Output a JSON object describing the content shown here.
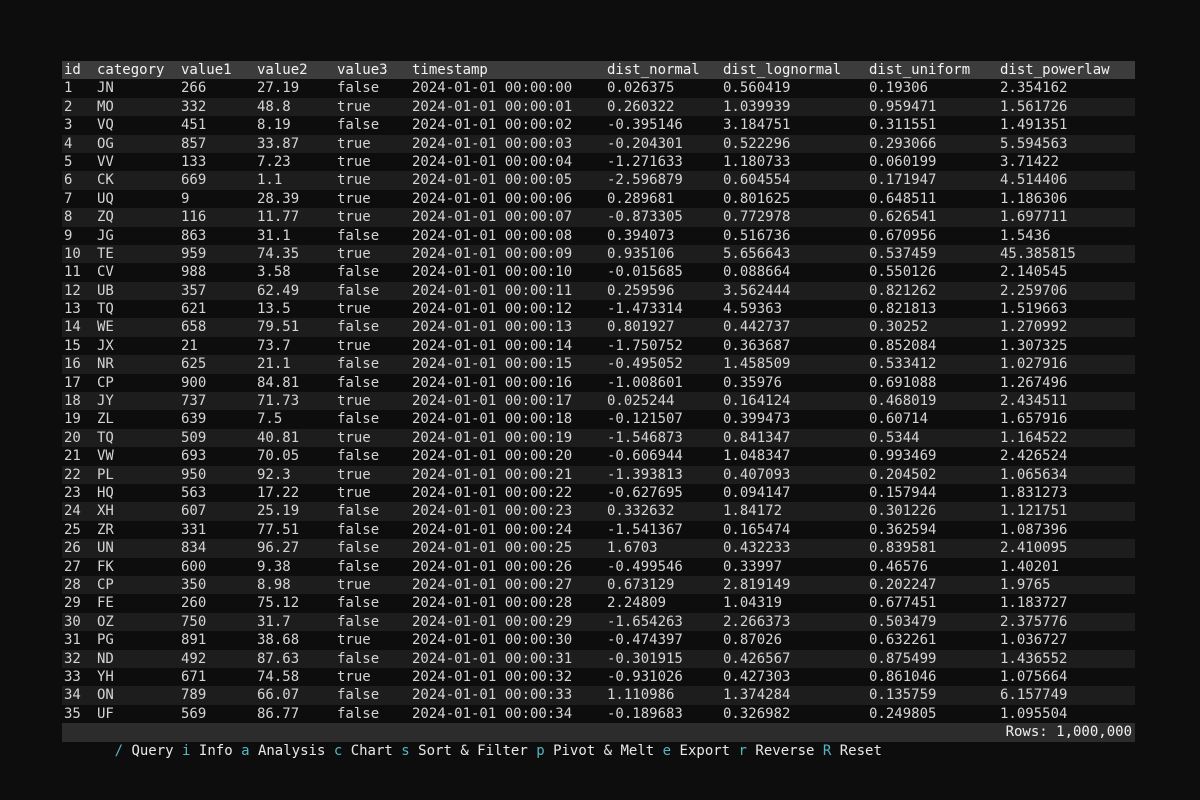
{
  "colors": {
    "background": "#0d0d0d",
    "header_bg": "#3c3c3c",
    "row_alt_bg": "#1d1d1d",
    "statusbar_bg": "#2c2c2c",
    "text": "#d4d4d4",
    "accent_key": "#56b6c2"
  },
  "table": {
    "columns": [
      "id",
      "category",
      "value1",
      "value2",
      "value3",
      "timestamp",
      "dist_normal",
      "dist_lognormal",
      "dist_uniform",
      "dist_powerlaw"
    ],
    "rows": [
      [
        "1",
        "JN",
        "266",
        "27.19",
        "false",
        "2024-01-01 00:00:00",
        "0.026375",
        "0.560419",
        "0.19306",
        "2.354162"
      ],
      [
        "2",
        "MO",
        "332",
        "48.8",
        "true",
        "2024-01-01 00:00:01",
        "0.260322",
        "1.039939",
        "0.959471",
        "1.561726"
      ],
      [
        "3",
        "VQ",
        "451",
        "8.19",
        "false",
        "2024-01-01 00:00:02",
        "-0.395146",
        "3.184751",
        "0.311551",
        "1.491351"
      ],
      [
        "4",
        "OG",
        "857",
        "33.87",
        "true",
        "2024-01-01 00:00:03",
        "-0.204301",
        "0.522296",
        "0.293066",
        "5.594563"
      ],
      [
        "5",
        "VV",
        "133",
        "7.23",
        "true",
        "2024-01-01 00:00:04",
        "-1.271633",
        "1.180733",
        "0.060199",
        "3.71422"
      ],
      [
        "6",
        "CK",
        "669",
        "1.1",
        "true",
        "2024-01-01 00:00:05",
        "-2.596879",
        "0.604554",
        "0.171947",
        "4.514406"
      ],
      [
        "7",
        "UQ",
        "9",
        "28.39",
        "true",
        "2024-01-01 00:00:06",
        "0.289681",
        "0.801625",
        "0.648511",
        "1.186306"
      ],
      [
        "8",
        "ZQ",
        "116",
        "11.77",
        "true",
        "2024-01-01 00:00:07",
        "-0.873305",
        "0.772978",
        "0.626541",
        "1.697711"
      ],
      [
        "9",
        "JG",
        "863",
        "31.1",
        "false",
        "2024-01-01 00:00:08",
        "0.394073",
        "0.516736",
        "0.670956",
        "1.5436"
      ],
      [
        "10",
        "TE",
        "959",
        "74.35",
        "true",
        "2024-01-01 00:00:09",
        "0.935106",
        "5.656643",
        "0.537459",
        "45.385815"
      ],
      [
        "11",
        "CV",
        "988",
        "3.58",
        "false",
        "2024-01-01 00:00:10",
        "-0.015685",
        "0.088664",
        "0.550126",
        "2.140545"
      ],
      [
        "12",
        "UB",
        "357",
        "62.49",
        "false",
        "2024-01-01 00:00:11",
        "0.259596",
        "3.562444",
        "0.821262",
        "2.259706"
      ],
      [
        "13",
        "TQ",
        "621",
        "13.5",
        "true",
        "2024-01-01 00:00:12",
        "-1.473314",
        "4.59363",
        "0.821813",
        "1.519663"
      ],
      [
        "14",
        "WE",
        "658",
        "79.51",
        "false",
        "2024-01-01 00:00:13",
        "0.801927",
        "0.442737",
        "0.30252",
        "1.270992"
      ],
      [
        "15",
        "JX",
        "21",
        "73.7",
        "true",
        "2024-01-01 00:00:14",
        "-1.750752",
        "0.363687",
        "0.852084",
        "1.307325"
      ],
      [
        "16",
        "NR",
        "625",
        "21.1",
        "false",
        "2024-01-01 00:00:15",
        "-0.495052",
        "1.458509",
        "0.533412",
        "1.027916"
      ],
      [
        "17",
        "CP",
        "900",
        "84.81",
        "false",
        "2024-01-01 00:00:16",
        "-1.008601",
        "0.35976",
        "0.691088",
        "1.267496"
      ],
      [
        "18",
        "JY",
        "737",
        "71.73",
        "true",
        "2024-01-01 00:00:17",
        "0.025244",
        "0.164124",
        "0.468019",
        "2.434511"
      ],
      [
        "19",
        "ZL",
        "639",
        "7.5",
        "false",
        "2024-01-01 00:00:18",
        "-0.121507",
        "0.399473",
        "0.60714",
        "1.657916"
      ],
      [
        "20",
        "TQ",
        "509",
        "40.81",
        "true",
        "2024-01-01 00:00:19",
        "-1.546873",
        "0.841347",
        "0.5344",
        "1.164522"
      ],
      [
        "21",
        "VW",
        "693",
        "70.05",
        "false",
        "2024-01-01 00:00:20",
        "-0.606944",
        "1.048347",
        "0.993469",
        "2.426524"
      ],
      [
        "22",
        "PL",
        "950",
        "92.3",
        "true",
        "2024-01-01 00:00:21",
        "-1.393813",
        "0.407093",
        "0.204502",
        "1.065634"
      ],
      [
        "23",
        "HQ",
        "563",
        "17.22",
        "true",
        "2024-01-01 00:00:22",
        "-0.627695",
        "0.094147",
        "0.157944",
        "1.831273"
      ],
      [
        "24",
        "XH",
        "607",
        "25.19",
        "false",
        "2024-01-01 00:00:23",
        "0.332632",
        "1.84172",
        "0.301226",
        "1.121751"
      ],
      [
        "25",
        "ZR",
        "331",
        "77.51",
        "false",
        "2024-01-01 00:00:24",
        "-1.541367",
        "0.165474",
        "0.362594",
        "1.087396"
      ],
      [
        "26",
        "UN",
        "834",
        "96.27",
        "false",
        "2024-01-01 00:00:25",
        "1.6703",
        "0.432233",
        "0.839581",
        "2.410095"
      ],
      [
        "27",
        "FK",
        "600",
        "9.38",
        "false",
        "2024-01-01 00:00:26",
        "-0.499546",
        "0.33997",
        "0.46576",
        "1.40201"
      ],
      [
        "28",
        "CP",
        "350",
        "8.98",
        "true",
        "2024-01-01 00:00:27",
        "0.673129",
        "2.819149",
        "0.202247",
        "1.9765"
      ],
      [
        "29",
        "FE",
        "260",
        "75.12",
        "false",
        "2024-01-01 00:00:28",
        "2.24809",
        "1.04319",
        "0.677451",
        "1.183727"
      ],
      [
        "30",
        "OZ",
        "750",
        "31.7",
        "false",
        "2024-01-01 00:00:29",
        "-1.654263",
        "2.266373",
        "0.503479",
        "2.375776"
      ],
      [
        "31",
        "PG",
        "891",
        "38.68",
        "true",
        "2024-01-01 00:00:30",
        "-0.474397",
        "0.87026",
        "0.632261",
        "1.036727"
      ],
      [
        "32",
        "ND",
        "492",
        "87.63",
        "false",
        "2024-01-01 00:00:31",
        "-0.301915",
        "0.426567",
        "0.875499",
        "1.436552"
      ],
      [
        "33",
        "YH",
        "671",
        "74.58",
        "true",
        "2024-01-01 00:00:32",
        "-0.931026",
        "0.427303",
        "0.861046",
        "1.075664"
      ],
      [
        "34",
        "ON",
        "789",
        "66.07",
        "false",
        "2024-01-01 00:00:33",
        "1.110986",
        "1.374284",
        "0.135759",
        "6.157749"
      ],
      [
        "35",
        "UF",
        "569",
        "86.77",
        "false",
        "2024-01-01 00:00:34",
        "-0.189683",
        "0.326982",
        "0.249805",
        "1.095504"
      ]
    ]
  },
  "statusbar": {
    "items": [
      {
        "key": "/",
        "label": "Query"
      },
      {
        "key": "i",
        "label": "Info"
      },
      {
        "key": "a",
        "label": "Analysis"
      },
      {
        "key": "c",
        "label": "Chart"
      },
      {
        "key": "s",
        "label": "Sort & Filter"
      },
      {
        "key": "p",
        "label": "Pivot & Melt"
      },
      {
        "key": "e",
        "label": "Export"
      },
      {
        "key": "r",
        "label": "Reverse"
      },
      {
        "key": "R",
        "label": "Reset"
      }
    ],
    "rows_label": "Rows: 1,000,000"
  }
}
